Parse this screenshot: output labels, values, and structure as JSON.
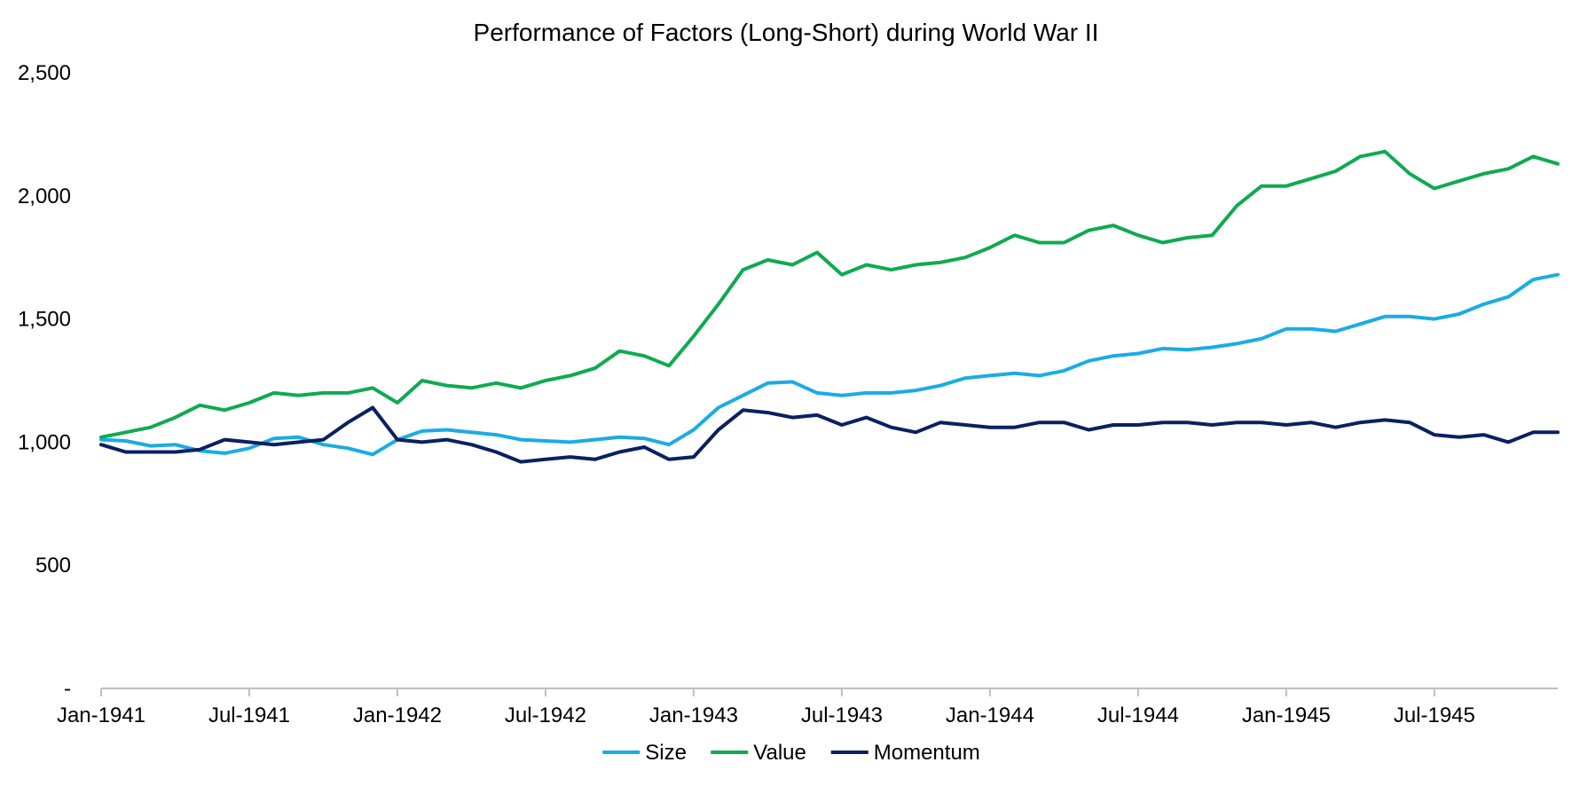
{
  "chart_data": {
    "type": "line",
    "title": "Performance of Factors (Long-Short) during World War II",
    "xlabel": "",
    "ylabel": "",
    "x_ticks": [
      "Jan-1941",
      "Jul-1941",
      "Jan-1942",
      "Jul-1942",
      "Jan-1943",
      "Jul-1943",
      "Jan-1944",
      "Jul-1944",
      "Jan-1945",
      "Jul-1945"
    ],
    "y_ticks": [
      "-",
      "500",
      "1,000",
      "1,500",
      "2,000",
      "2,500"
    ],
    "y_tick_values": [
      0,
      500,
      1000,
      1500,
      2000,
      2500
    ],
    "ylim": [
      0,
      2500
    ],
    "xlim": [
      "1941-01",
      "1945-12"
    ],
    "grid": false,
    "legend_position": "bottom",
    "x": [
      "1941-01",
      "1941-02",
      "1941-03",
      "1941-04",
      "1941-05",
      "1941-06",
      "1941-07",
      "1941-08",
      "1941-09",
      "1941-10",
      "1941-11",
      "1941-12",
      "1942-01",
      "1942-02",
      "1942-03",
      "1942-04",
      "1942-05",
      "1942-06",
      "1942-07",
      "1942-08",
      "1942-09",
      "1942-10",
      "1942-11",
      "1942-12",
      "1943-01",
      "1943-02",
      "1943-03",
      "1943-04",
      "1943-05",
      "1943-06",
      "1943-07",
      "1943-08",
      "1943-09",
      "1943-10",
      "1943-11",
      "1943-12",
      "1944-01",
      "1944-02",
      "1944-03",
      "1944-04",
      "1944-05",
      "1944-06",
      "1944-07",
      "1944-08",
      "1944-09",
      "1944-10",
      "1944-11",
      "1944-12",
      "1945-01",
      "1945-02",
      "1945-03",
      "1945-04",
      "1945-05",
      "1945-06",
      "1945-07",
      "1945-08",
      "1945-09",
      "1945-10",
      "1945-11",
      "1945-12"
    ],
    "series": [
      {
        "name": "Size",
        "color": "#1AACE5",
        "values": [
          1010,
          1005,
          985,
          990,
          965,
          955,
          975,
          1015,
          1020,
          990,
          975,
          950,
          1010,
          1045,
          1050,
          1040,
          1030,
          1010,
          1005,
          1000,
          1010,
          1020,
          1015,
          990,
          1050,
          1140,
          1190,
          1240,
          1245,
          1200,
          1190,
          1200,
          1200,
          1210,
          1230,
          1260,
          1270,
          1280,
          1270,
          1290,
          1330,
          1350,
          1360,
          1380,
          1375,
          1385,
          1400,
          1420,
          1460,
          1460,
          1450,
          1480,
          1510,
          1510,
          1500,
          1520,
          1560,
          1590,
          1660,
          1680
        ]
      },
      {
        "name": "Value",
        "color": "#0FAA50",
        "values": [
          1020,
          1040,
          1060,
          1100,
          1150,
          1130,
          1160,
          1200,
          1190,
          1200,
          1200,
          1220,
          1160,
          1250,
          1230,
          1220,
          1240,
          1220,
          1250,
          1270,
          1300,
          1370,
          1350,
          1310,
          1430,
          1560,
          1700,
          1740,
          1720,
          1770,
          1680,
          1720,
          1700,
          1720,
          1730,
          1750,
          1790,
          1840,
          1810,
          1810,
          1860,
          1880,
          1840,
          1810,
          1830,
          1840,
          1960,
          2040,
          2040,
          2070,
          2100,
          2160,
          2180,
          2090,
          2030,
          2060,
          2090,
          2110,
          2160,
          2130
        ]
      },
      {
        "name": "Momentum",
        "color": "#0B2060",
        "values": [
          990,
          960,
          960,
          960,
          970,
          1010,
          1000,
          990,
          1000,
          1010,
          1080,
          1140,
          1010,
          1000,
          1010,
          990,
          960,
          920,
          930,
          940,
          930,
          960,
          980,
          930,
          940,
          1050,
          1130,
          1120,
          1100,
          1110,
          1070,
          1100,
          1060,
          1040,
          1080,
          1070,
          1060,
          1060,
          1080,
          1080,
          1050,
          1070,
          1070,
          1080,
          1080,
          1070,
          1080,
          1080,
          1070,
          1080,
          1060,
          1080,
          1090,
          1080,
          1030,
          1020,
          1030,
          1000,
          1040,
          1040
        ]
      }
    ]
  }
}
